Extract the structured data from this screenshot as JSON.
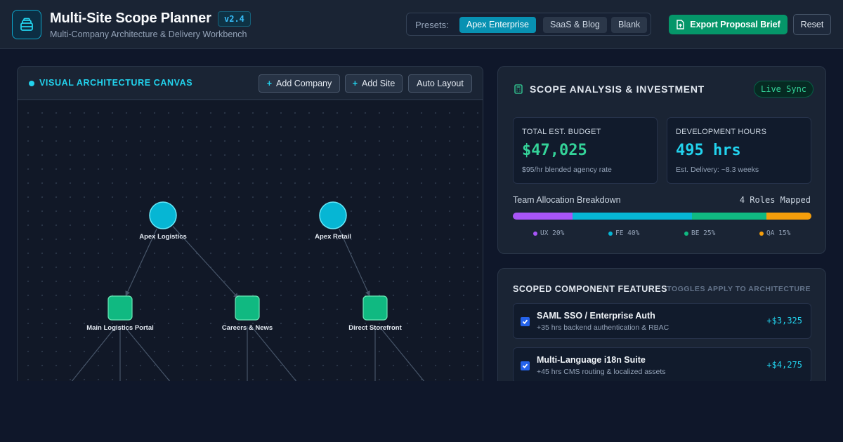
{
  "header": {
    "title": "Multi-Site Scope Planner",
    "version": "v2.4",
    "subtitle": "Multi-Company Architecture & Delivery Workbench",
    "logo_icon": "layers-stack-icon",
    "presets_label": "Presets:",
    "presets": [
      {
        "label": "Apex Enterprise",
        "active": true
      },
      {
        "label": "SaaS & Blog",
        "active": false
      },
      {
        "label": "Blank",
        "active": false
      }
    ],
    "export_label": "Export Proposal Brief",
    "export_icon": "file-export-icon",
    "reset_label": "Reset"
  },
  "canvas": {
    "title": "VISUAL ARCHITECTURE CANVAS",
    "add_company_label": "Add Company",
    "add_site_label": "Add Site",
    "auto_layout_label": "Auto Layout",
    "companies": [
      {
        "id": "c1",
        "label": "Apex Logistics"
      },
      {
        "id": "c2",
        "label": "Apex Retail"
      }
    ],
    "sites": [
      {
        "id": "s1",
        "label": "Main Logistics Portal",
        "parent": "c1"
      },
      {
        "id": "s2",
        "label": "Careers & News",
        "parent": "c1"
      },
      {
        "id": "s3",
        "label": "Direct Storefront",
        "parent": "c2"
      }
    ],
    "colors": {
      "company": "#06b6d4",
      "site": "#10b981",
      "edge": "#475569"
    }
  },
  "scope": {
    "title": "SCOPE ANALYSIS & INVESTMENT",
    "live_badge": "Live Sync",
    "budget": {
      "label": "TOTAL EST. BUDGET",
      "value": "$47,025",
      "note": "$95/hr blended agency rate",
      "color": "#34d399"
    },
    "hours": {
      "label": "DEVELOPMENT HOURS",
      "value": "495 hrs",
      "note": "Est. Delivery: ~8.3 weeks",
      "color": "#22d3ee"
    },
    "allocation_label": "Team Allocation Breakdown",
    "allocation_count": "4 Roles Mapped",
    "allocation": [
      {
        "role": "UX",
        "percent": 20,
        "legend": "UX 20%",
        "color": "#a855f7"
      },
      {
        "role": "FE",
        "percent": 40,
        "legend": "FE 40%",
        "color": "#06b6d4"
      },
      {
        "role": "BE",
        "percent": 25,
        "legend": "BE 25%",
        "color": "#10b981"
      },
      {
        "role": "QA",
        "percent": 15,
        "legend": "QA 15%",
        "color": "#f59e0b"
      }
    ]
  },
  "features": {
    "title": "SCOPED COMPONENT FEATURES",
    "hint": "TOGGLES APPLY TO ARCHITECTURE",
    "items": [
      {
        "name": "SAML SSO / Enterprise Auth",
        "desc": "+35 hrs backend authentication & RBAC",
        "cost": "+$3,325",
        "checked": true
      },
      {
        "name": "Multi-Language i18n Suite",
        "desc": "+45 hrs CMS routing & localized assets",
        "cost": "+$4,275",
        "checked": true
      }
    ]
  }
}
